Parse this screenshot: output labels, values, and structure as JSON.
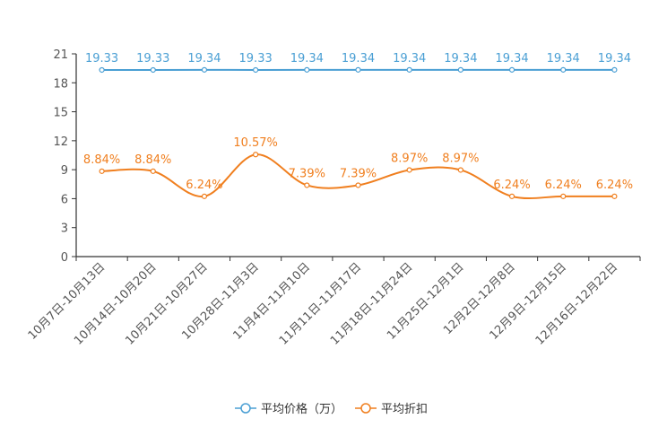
{
  "chart_data": {
    "type": "line",
    "categories": [
      "10月7日-10月13日",
      "10月14日-10月20日",
      "10月21日-10月27日",
      "10月28日-11月3日",
      "11月4日-11月10日",
      "11月11日-11月17日",
      "11月18日-11月24日",
      "11月25日-12月1日",
      "12月2日-12月8日",
      "12月9日-12月15日",
      "12月16日-12月22日"
    ],
    "series": [
      {
        "name": "平均价格（万）",
        "color": "#4a9fd4",
        "smooth": false,
        "values": [
          19.33,
          19.33,
          19.34,
          19.33,
          19.34,
          19.34,
          19.34,
          19.34,
          19.34,
          19.34,
          19.34
        ],
        "labels": [
          "19.33",
          "19.33",
          "19.34",
          "19.33",
          "19.34",
          "19.34",
          "19.34",
          "19.34",
          "19.34",
          "19.34",
          "19.34"
        ]
      },
      {
        "name": "平均折扣",
        "color": "#f07f1f",
        "smooth": true,
        "values": [
          8.84,
          8.84,
          6.24,
          10.57,
          7.39,
          7.39,
          8.97,
          8.97,
          6.24,
          6.24,
          6.24
        ],
        "labels": [
          "8.84%",
          "8.84%",
          "6.24%",
          "10.57%",
          "7.39%",
          "7.39%",
          "8.97%",
          "8.97%",
          "6.24%",
          "6.24%",
          "6.24%"
        ]
      }
    ],
    "yticks": [
      0,
      3,
      6,
      9,
      12,
      15,
      18,
      21
    ],
    "ylim": [
      0,
      21
    ],
    "xlabel": "",
    "ylabel": "",
    "grid": false,
    "legend_position": "bottom-center"
  }
}
